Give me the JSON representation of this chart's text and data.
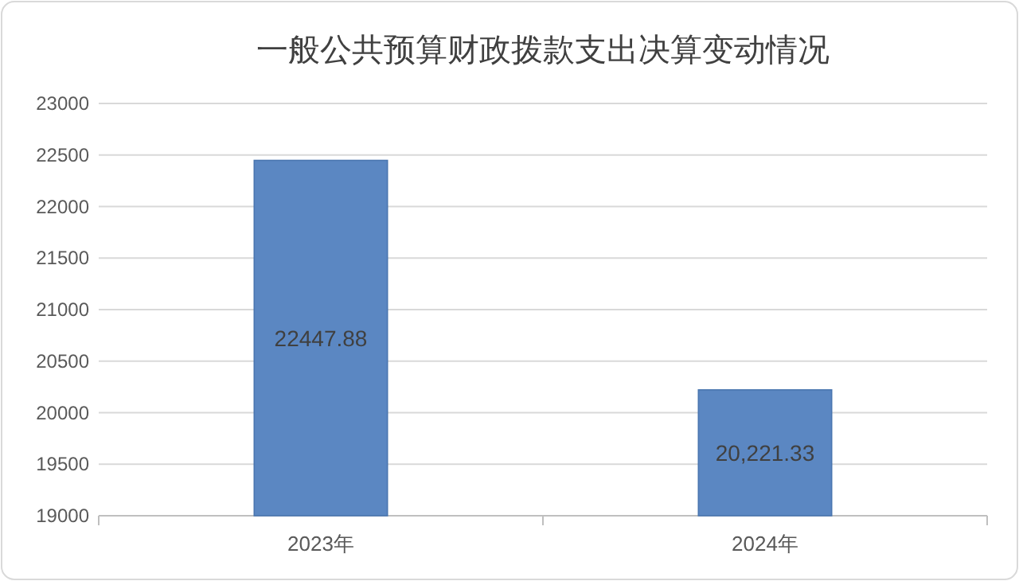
{
  "chart_data": {
    "type": "bar",
    "title": "一般公共预算财政拨款支出决算变动情况",
    "categories": [
      "2023年",
      "2024年"
    ],
    "values": [
      22447.88,
      20221.33
    ],
    "value_labels": [
      "22447.88",
      "20,221.33"
    ],
    "color": "#5b87c2",
    "ylim": [
      19000,
      23000
    ],
    "yticks": [
      19000,
      19500,
      20000,
      20500,
      21000,
      21500,
      22000,
      22500,
      23000
    ],
    "grid": "y"
  }
}
